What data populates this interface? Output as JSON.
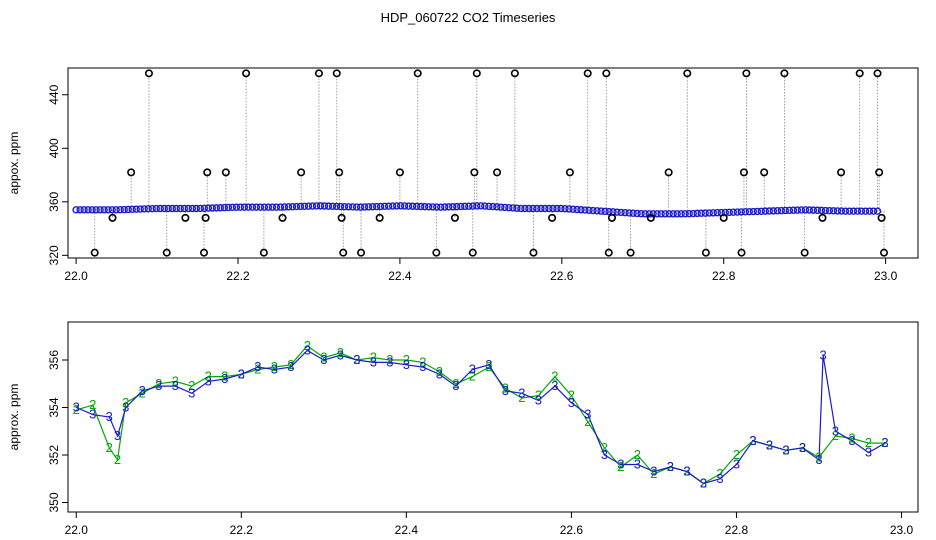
{
  "figure": {
    "title": "HDP_060722  CO2 Timeseries"
  },
  "chart_data": [
    {
      "type": "scatter",
      "ylabel": "appox. ppm",
      "xlim": [
        21.99,
        23.04
      ],
      "ylim": [
        318,
        460
      ],
      "x_ticks": [
        22.0,
        22.2,
        22.4,
        22.6,
        22.8,
        23.0
      ],
      "x_tick_labels": [
        "22.0",
        "22.2",
        "22.4",
        "22.6",
        "22.8",
        "23.0"
      ],
      "y_ticks": [
        320,
        360,
        400,
        440
      ],
      "y_tick_labels": [
        "320",
        "360",
        "400",
        "440"
      ],
      "series": [],
      "baseline": {
        "color": "#1a1acc",
        "x": [
          22.0,
          22.05,
          22.1,
          22.15,
          22.2,
          22.25,
          22.3,
          22.35,
          22.4,
          22.45,
          22.5,
          22.55,
          22.6,
          22.65,
          22.7,
          22.75,
          22.8,
          22.85,
          22.9,
          22.95,
          22.99
        ],
        "y": [
          354,
          354,
          355,
          355,
          356,
          356,
          357,
          356,
          357,
          356,
          357,
          355,
          355,
          353,
          351,
          351,
          352,
          353,
          354,
          353,
          353
        ]
      },
      "outliers": {
        "color": "#000000",
        "x": [
          22.023,
          22.045,
          22.068,
          22.09,
          22.112,
          22.135,
          22.158,
          22.16,
          22.162,
          22.185,
          22.21,
          22.232,
          22.255,
          22.278,
          22.3,
          22.322,
          22.325,
          22.328,
          22.33,
          22.352,
          22.375,
          22.4,
          22.422,
          22.445,
          22.468,
          22.49,
          22.492,
          22.495,
          22.52,
          22.542,
          22.565,
          22.588,
          22.61,
          22.632,
          22.655,
          22.658,
          22.662,
          22.685,
          22.71,
          22.732,
          22.755,
          22.778,
          22.8,
          22.822,
          22.825,
          22.828,
          22.85,
          22.875,
          22.9,
          22.922,
          22.945,
          22.968,
          22.99,
          22.992,
          22.995,
          22.998
        ],
        "y": [
          322,
          348,
          382,
          456,
          322,
          348,
          322,
          348,
          382,
          382,
          456,
          322,
          348,
          382,
          456,
          456,
          382,
          348,
          322,
          322,
          348,
          382,
          456,
          322,
          348,
          322,
          382,
          456,
          382,
          456,
          322,
          348,
          382,
          456,
          456,
          322,
          348,
          322,
          348,
          382,
          456,
          322,
          348,
          322,
          382,
          456,
          382,
          456,
          322,
          348,
          382,
          456,
          456,
          382,
          348,
          322
        ]
      }
    },
    {
      "type": "line",
      "ylabel": "approx. ppm",
      "xlim": [
        21.99,
        23.02
      ],
      "ylim": [
        349.6,
        357.6
      ],
      "x_ticks": [
        22.0,
        22.2,
        22.4,
        22.6,
        22.8,
        23.0
      ],
      "x_tick_labels": [
        "22.0",
        "22.2",
        "22.4",
        "22.6",
        "22.8",
        "23.0"
      ],
      "y_ticks": [
        350,
        352,
        354,
        356
      ],
      "y_tick_labels": [
        "350",
        "352",
        "354",
        "356"
      ],
      "series": [
        {
          "color": "#00aa00",
          "marker": "2",
          "x": [
            22.0,
            22.02,
            22.04,
            22.05,
            22.06,
            22.08,
            22.1,
            22.12,
            22.14,
            22.16,
            22.18,
            22.2,
            22.22,
            22.24,
            22.26,
            22.28,
            22.3,
            22.32,
            22.34,
            22.36,
            22.38,
            22.4,
            22.42,
            22.44,
            22.46,
            22.48,
            22.5,
            22.52,
            22.54,
            22.56,
            22.58,
            22.6,
            22.62,
            22.64,
            22.66,
            22.68,
            22.7,
            22.72,
            22.74,
            22.76,
            22.78,
            22.8,
            22.82,
            22.84,
            22.86,
            22.88,
            22.9,
            22.92,
            22.94,
            22.96,
            22.98
          ],
          "y": [
            353.9,
            354.1,
            352.3,
            351.8,
            354.2,
            354.6,
            355.0,
            355.1,
            354.9,
            355.3,
            355.3,
            355.4,
            355.6,
            355.7,
            355.8,
            356.6,
            356.1,
            356.3,
            356.0,
            356.1,
            356.0,
            356.0,
            355.9,
            355.5,
            355.0,
            355.3,
            355.7,
            354.8,
            354.4,
            354.5,
            355.3,
            354.5,
            353.4,
            352.3,
            351.5,
            352.0,
            351.2,
            351.5,
            351.3,
            350.8,
            351.2,
            352.0,
            352.6,
            352.4,
            352.2,
            352.3,
            351.9,
            352.8,
            352.7,
            352.5,
            352.5
          ]
        },
        {
          "color": "#1a1acc",
          "marker": "3",
          "x": [
            22.0,
            22.02,
            22.04,
            22.05,
            22.06,
            22.08,
            22.1,
            22.12,
            22.14,
            22.16,
            22.18,
            22.2,
            22.22,
            22.24,
            22.26,
            22.28,
            22.3,
            22.32,
            22.34,
            22.36,
            22.38,
            22.4,
            22.42,
            22.44,
            22.46,
            22.48,
            22.5,
            22.52,
            22.54,
            22.56,
            22.58,
            22.6,
            22.62,
            22.64,
            22.66,
            22.68,
            22.7,
            22.72,
            22.74,
            22.76,
            22.78,
            22.8,
            22.82,
            22.84,
            22.86,
            22.88,
            22.9,
            22.905,
            22.92,
            22.94,
            22.96,
            22.98
          ],
          "y": [
            354.0,
            353.7,
            353.6,
            352.8,
            354.0,
            354.7,
            354.9,
            354.9,
            354.6,
            355.1,
            355.2,
            355.4,
            355.7,
            355.6,
            355.7,
            356.4,
            356.0,
            356.2,
            356.0,
            355.9,
            355.9,
            355.8,
            355.7,
            355.4,
            354.9,
            355.6,
            355.8,
            354.7,
            354.6,
            354.3,
            354.9,
            354.2,
            353.7,
            352.0,
            351.6,
            351.6,
            351.3,
            351.5,
            351.3,
            350.8,
            351.0,
            351.6,
            352.6,
            352.4,
            352.2,
            352.3,
            351.8,
            356.2,
            353.0,
            352.6,
            352.1,
            352.5
          ]
        }
      ]
    }
  ]
}
